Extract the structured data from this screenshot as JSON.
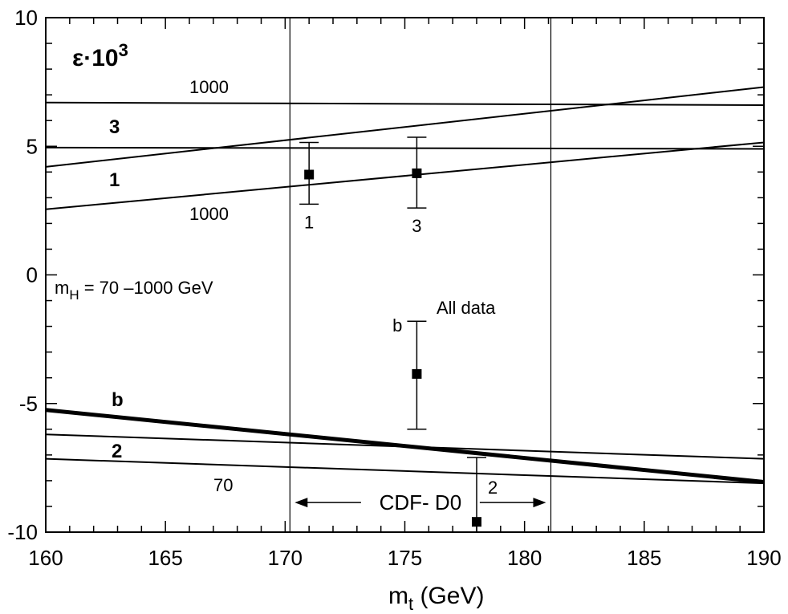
{
  "chart_data": {
    "type": "line",
    "title": "",
    "ylabel_text": {
      "base": "ε·10",
      "exp": "3"
    },
    "xlabel_text": {
      "base": "m",
      "sub": "t",
      "rest": " (GeV)"
    },
    "xlim": [
      160,
      190
    ],
    "ylim": [
      -10,
      10
    ],
    "xticks": [
      160,
      165,
      170,
      175,
      180,
      185,
      190
    ],
    "xtick_labels": [
      "160",
      "165",
      "170",
      "175",
      "180",
      "185",
      "190"
    ],
    "yticks": [
      -10,
      -5,
      0,
      5,
      10
    ],
    "ytick_labels": [
      "-10",
      "-5",
      "0",
      "5",
      "10"
    ],
    "series": [
      {
        "name": "3 (mH=1000)",
        "x": [
          160,
          190
        ],
        "y": [
          6.7,
          6.6
        ],
        "width": 2
      },
      {
        "name": "3 (mH=70)",
        "x": [
          160,
          190
        ],
        "y": [
          4.2,
          7.3
        ],
        "width": 2
      },
      {
        "name": "1 (mH=1000)",
        "x": [
          160,
          190
        ],
        "y": [
          4.95,
          4.9
        ],
        "width": 2
      },
      {
        "name": "1 (mH=70)",
        "x": [
          160,
          190
        ],
        "y": [
          2.55,
          5.15
        ],
        "width": 2
      },
      {
        "name": "b",
        "x": [
          160,
          190
        ],
        "y": [
          -5.25,
          -8.05
        ],
        "width": 5
      },
      {
        "name": "2 (mH=1000)",
        "x": [
          160,
          190
        ],
        "y": [
          -6.2,
          -7.15
        ],
        "width": 2
      },
      {
        "name": "2 (mH=70)",
        "x": [
          160,
          190
        ],
        "y": [
          -7.15,
          -8.1
        ],
        "width": 2
      }
    ],
    "points": [
      {
        "label": "1",
        "x": 171.0,
        "y": 3.9,
        "ylo": 2.75,
        "yhi": 5.15
      },
      {
        "label": "3",
        "x": 175.5,
        "y": 3.95,
        "ylo": 2.6,
        "yhi": 5.35
      },
      {
        "label": "b",
        "x": 175.5,
        "y": -3.85,
        "ylo": -6.0,
        "yhi": -1.8
      },
      {
        "label": "2",
        "x": 178.0,
        "y": -9.6,
        "ylo": -10.0,
        "yhi": -7.1
      }
    ],
    "vlines": [
      170.2,
      181.1
    ],
    "band": {
      "label": "CDF- D0",
      "from": 170.2,
      "to": 181.1,
      "y": -8.85
    },
    "curve_labels": [
      "3",
      "1",
      "b",
      "2"
    ],
    "mh_labels": [
      "1000",
      "1000",
      "70"
    ],
    "annotation_mh": {
      "base": "m",
      "sub": "H",
      "rest": " = 70 –1000 GeV"
    },
    "annotation_all_data": "All data"
  }
}
